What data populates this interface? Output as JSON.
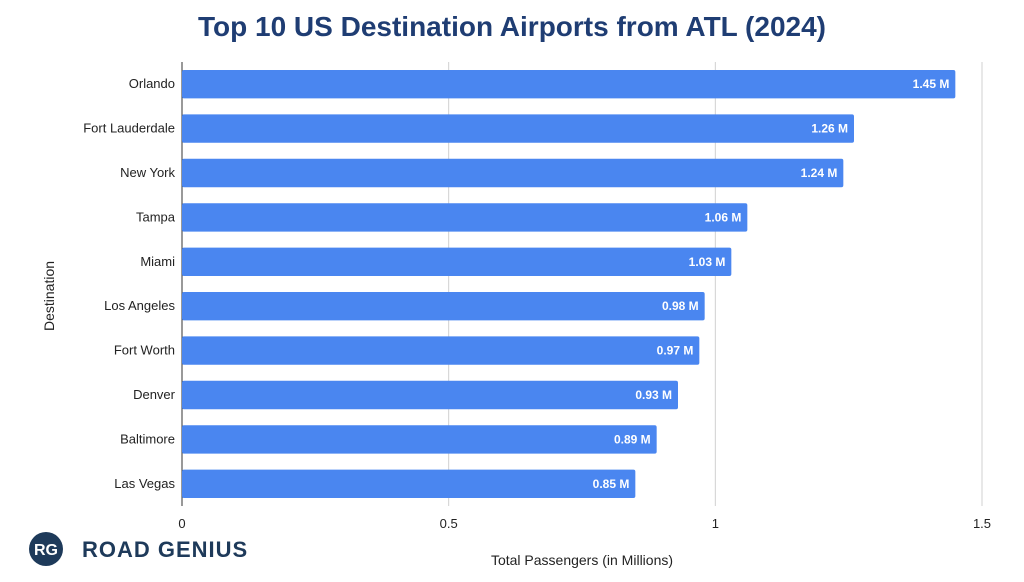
{
  "chart_data": {
    "type": "bar",
    "orientation": "horizontal",
    "title": "Top 10 US Destination Airports from ATL (2024)",
    "xlabel": "Total Passengers (in Millions)",
    "ylabel": "Destination",
    "xlim": [
      0,
      1.5
    ],
    "xticks": [
      "0",
      "0.5",
      "1",
      "1.5"
    ],
    "grid": "vertical",
    "categories": [
      "Orlando",
      "Fort Lauderdale",
      "New York",
      "Tampa",
      "Miami",
      "Los Angeles",
      "Fort Worth",
      "Denver",
      "Baltimore",
      "Las Vegas"
    ],
    "values": [
      1.45,
      1.26,
      1.24,
      1.06,
      1.03,
      0.98,
      0.97,
      0.93,
      0.89,
      0.85
    ],
    "data_labels": [
      "1.45 M",
      "1.26 M",
      "1.24 M",
      "1.06 M",
      "1.03 M",
      "0.98 M",
      "0.97 M",
      "0.93 M",
      "0.89 M",
      "0.85 M"
    ],
    "bar_color": "#4a86f0"
  },
  "colors": {
    "title": "#1f3d73",
    "grid": "#d0d0d0",
    "logo": "#1e3a5a"
  },
  "logo": {
    "initials": "RG",
    "text": "ROAD GENIUS"
  }
}
